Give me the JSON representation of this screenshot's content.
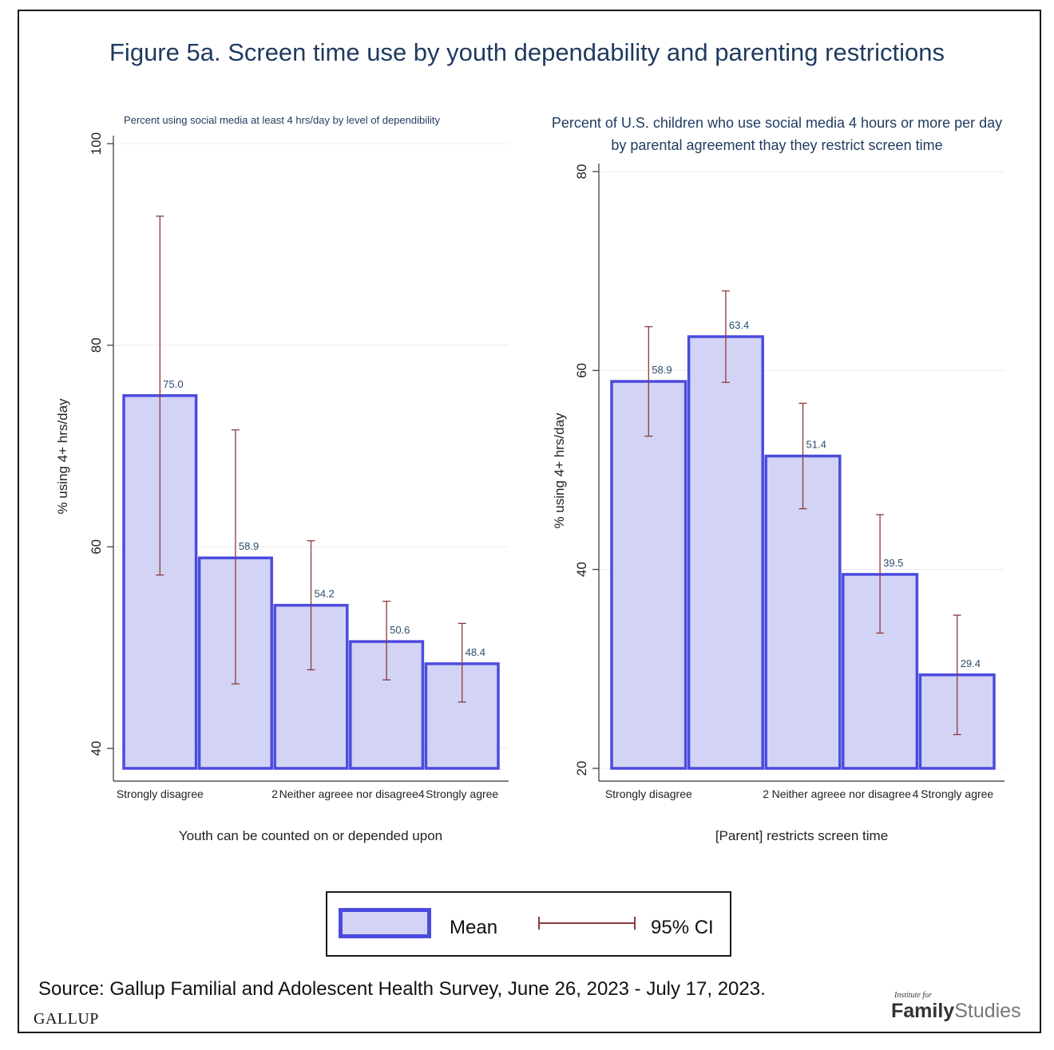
{
  "figure_title": "Figure 5a. Screen time use by youth dependability and parenting restrictions",
  "legend": {
    "mean_label": "Mean",
    "ci_label": "95% CI"
  },
  "source": "Source: Gallup Familial and Adolescent Health Survey, June 26, 2023 - July 17, 2023.",
  "gallup_logo": "GALLUP",
  "ifs_logo": {
    "small": "Institute for",
    "family": "Family",
    "studies": "Studies"
  },
  "colors": {
    "bar_fill": "#d3d3f5",
    "bar_stroke": "#4b4be0",
    "ci": "#8b3a3a",
    "grid": "#ececec",
    "axis": "#333333"
  },
  "chart_data": [
    {
      "type": "bar",
      "title": "Percent using social media at least 4 hrs/day by level of dependibility",
      "categories": [
        "Strongly disagree",
        "2",
        "Neither agreee nor disagree",
        "4",
        "Strongly agree"
      ],
      "values": [
        75.0,
        58.9,
        54.2,
        50.6,
        48.4
      ],
      "value_labels": [
        "75.0",
        "58.9",
        "54.2",
        "50.6",
        "48.4"
      ],
      "ci_low": [
        57.2,
        46.4,
        47.8,
        46.8,
        44.6
      ],
      "ci_high": [
        92.8,
        71.6,
        60.6,
        54.6,
        52.4
      ],
      "xlabel": "Youth can be counted on or depended upon",
      "ylabel": "% using 4+ hrs/day",
      "ylim": [
        38,
        100
      ],
      "yticks": [
        40,
        60,
        80,
        100
      ],
      "bar_base": 38,
      "grid": true
    },
    {
      "type": "bar",
      "title": "Percent of U.S. children who use social media 4 hours or more per day",
      "title_line2": "by parental agreement thay they restrict screen time",
      "categories": [
        "Strongly disagree",
        "2",
        "Neither agreee nor disagree",
        "4",
        "Strongly agree"
      ],
      "values": [
        58.9,
        63.4,
        51.4,
        39.5,
        29.4
      ],
      "value_labels": [
        "58.9",
        "63.4",
        "51.4",
        "39.5",
        "29.4"
      ],
      "ci_low": [
        53.4,
        58.8,
        46.1,
        33.6,
        23.4
      ],
      "ci_high": [
        64.4,
        68.0,
        56.7,
        45.5,
        35.4
      ],
      "xlabel": "[Parent] restricts screen time",
      "ylabel": "% using 4+ hrs/day",
      "ylim": [
        20,
        80
      ],
      "yticks": [
        20,
        40,
        60,
        80
      ],
      "bar_base": 20,
      "grid": true
    }
  ]
}
